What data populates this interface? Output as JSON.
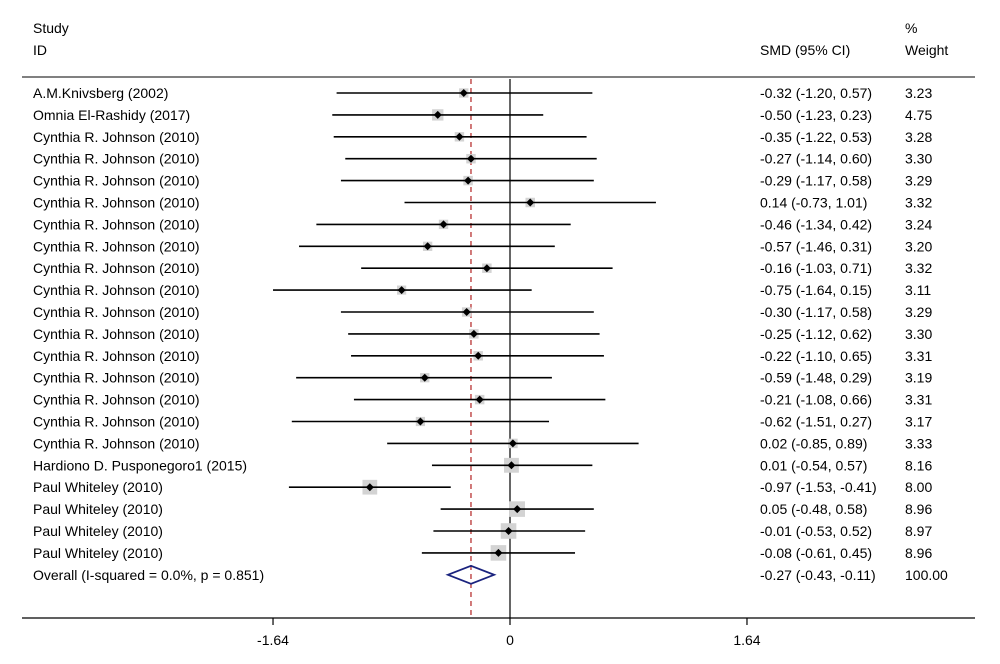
{
  "header": {
    "study_label": "Study",
    "id_label": "ID",
    "smd_label": "SMD (95% CI)",
    "pct_label": "%",
    "weight_label": "Weight"
  },
  "colors": {
    "ci_line": "#000000",
    "point": "#000000",
    "weight_box": "#d3d3d3",
    "diamond": "#1a237e",
    "pooled_line": "#b22222",
    "axis": "#000000"
  },
  "chart_data": {
    "type": "forest",
    "x_axis": {
      "ticks": [
        -1.64,
        0,
        1.64
      ],
      "tick_labels": [
        "-1.64",
        "0",
        "1.64"
      ],
      "range": [
        -3.4,
        3.2
      ]
    },
    "null_line": 0,
    "pooled_line": -0.27,
    "studies": [
      {
        "id": "A.M.Knivsberg (2002)",
        "smd": -0.32,
        "lo": -1.2,
        "hi": 0.57,
        "ci_text": "-0.32 (-1.20, 0.57)",
        "weight": 3.23,
        "weight_text": "3.23"
      },
      {
        "id": "Omnia El-Rashidy (2017)",
        "smd": -0.5,
        "lo": -1.23,
        "hi": 0.23,
        "ci_text": "-0.50 (-1.23, 0.23)",
        "weight": 4.75,
        "weight_text": "4.75"
      },
      {
        "id": "Cynthia R. Johnson (2010)",
        "smd": -0.35,
        "lo": -1.22,
        "hi": 0.53,
        "ci_text": "-0.35 (-1.22, 0.53)",
        "weight": 3.28,
        "weight_text": "3.28"
      },
      {
        "id": "Cynthia R. Johnson (2010)",
        "smd": -0.27,
        "lo": -1.14,
        "hi": 0.6,
        "ci_text": "-0.27 (-1.14, 0.60)",
        "weight": 3.3,
        "weight_text": "3.30"
      },
      {
        "id": "Cynthia R. Johnson (2010)",
        "smd": -0.29,
        "lo": -1.17,
        "hi": 0.58,
        "ci_text": "-0.29 (-1.17, 0.58)",
        "weight": 3.29,
        "weight_text": "3.29"
      },
      {
        "id": "Cynthia R. Johnson (2010)",
        "smd": 0.14,
        "lo": -0.73,
        "hi": 1.01,
        "ci_text": "0.14 (-0.73, 1.01)",
        "weight": 3.32,
        "weight_text": "3.32"
      },
      {
        "id": "Cynthia R. Johnson (2010)",
        "smd": -0.46,
        "lo": -1.34,
        "hi": 0.42,
        "ci_text": "-0.46 (-1.34, 0.42)",
        "weight": 3.24,
        "weight_text": "3.24"
      },
      {
        "id": "Cynthia R. Johnson (2010)",
        "smd": -0.57,
        "lo": -1.46,
        "hi": 0.31,
        "ci_text": "-0.57 (-1.46, 0.31)",
        "weight": 3.2,
        "weight_text": "3.20"
      },
      {
        "id": "Cynthia R. Johnson (2010)",
        "smd": -0.16,
        "lo": -1.03,
        "hi": 0.71,
        "ci_text": "-0.16 (-1.03, 0.71)",
        "weight": 3.32,
        "weight_text": "3.32"
      },
      {
        "id": "Cynthia R. Johnson (2010)",
        "smd": -0.75,
        "lo": -1.64,
        "hi": 0.15,
        "ci_text": "-0.75 (-1.64, 0.15)",
        "weight": 3.11,
        "weight_text": "3.11"
      },
      {
        "id": "Cynthia R. Johnson (2010)",
        "smd": -0.3,
        "lo": -1.17,
        "hi": 0.58,
        "ci_text": "-0.30 (-1.17, 0.58)",
        "weight": 3.29,
        "weight_text": "3.29"
      },
      {
        "id": "Cynthia R. Johnson (2010)",
        "smd": -0.25,
        "lo": -1.12,
        "hi": 0.62,
        "ci_text": "-0.25 (-1.12, 0.62)",
        "weight": 3.3,
        "weight_text": "3.30"
      },
      {
        "id": "Cynthia R. Johnson (2010)",
        "smd": -0.22,
        "lo": -1.1,
        "hi": 0.65,
        "ci_text": "-0.22 (-1.10, 0.65)",
        "weight": 3.31,
        "weight_text": "3.31"
      },
      {
        "id": "Cynthia R. Johnson (2010)",
        "smd": -0.59,
        "lo": -1.48,
        "hi": 0.29,
        "ci_text": "-0.59 (-1.48, 0.29)",
        "weight": 3.19,
        "weight_text": "3.19"
      },
      {
        "id": "Cynthia R. Johnson (2010)",
        "smd": -0.21,
        "lo": -1.08,
        "hi": 0.66,
        "ci_text": "-0.21 (-1.08, 0.66)",
        "weight": 3.31,
        "weight_text": "3.31"
      },
      {
        "id": "Cynthia R. Johnson (2010)",
        "smd": -0.62,
        "lo": -1.51,
        "hi": 0.27,
        "ci_text": "-0.62 (-1.51, 0.27)",
        "weight": 3.17,
        "weight_text": "3.17"
      },
      {
        "id": "Cynthia R. Johnson (2010)",
        "smd": 0.02,
        "lo": -0.85,
        "hi": 0.89,
        "ci_text": "0.02 (-0.85, 0.89)",
        "weight": 3.33,
        "weight_text": "3.33"
      },
      {
        "id": "Hardiono D. Pusponegoro1 (2015)",
        "smd": 0.01,
        "lo": -0.54,
        "hi": 0.57,
        "ci_text": "0.01 (-0.54, 0.57)",
        "weight": 8.16,
        "weight_text": "8.16"
      },
      {
        "id": "Paul Whiteley (2010)",
        "smd": -0.97,
        "lo": -1.53,
        "hi": -0.41,
        "ci_text": "-0.97 (-1.53, -0.41)",
        "weight": 8.0,
        "weight_text": "8.00"
      },
      {
        "id": "Paul Whiteley (2010)",
        "smd": 0.05,
        "lo": -0.48,
        "hi": 0.58,
        "ci_text": "0.05 (-0.48, 0.58)",
        "weight": 8.96,
        "weight_text": "8.96"
      },
      {
        "id": "Paul Whiteley (2010)",
        "smd": -0.01,
        "lo": -0.53,
        "hi": 0.52,
        "ci_text": "-0.01 (-0.53, 0.52)",
        "weight": 8.97,
        "weight_text": "8.97"
      },
      {
        "id": "Paul Whiteley (2010)",
        "smd": -0.08,
        "lo": -0.61,
        "hi": 0.45,
        "ci_text": "-0.08 (-0.61, 0.45)",
        "weight": 8.96,
        "weight_text": "8.96"
      }
    ],
    "overall": {
      "label": "Overall  (I-squared = 0.0%, p = 0.851)",
      "smd": -0.27,
      "lo": -0.43,
      "hi": -0.11,
      "ci_text": "-0.27 (-0.43, -0.11)",
      "weight_text": "100.00"
    }
  }
}
